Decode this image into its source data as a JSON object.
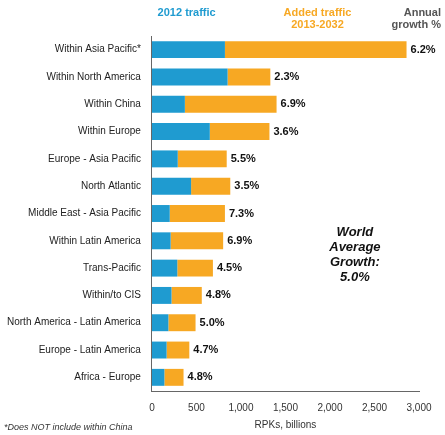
{
  "chart_data": {
    "type": "bar",
    "orientation": "horizontal",
    "stacked": true,
    "categories": [
      "Within Asia Pacific*",
      "Within North America",
      "Within China",
      "Within Europe",
      "Europe - Asia Pacific",
      "North Atlantic",
      "Middle East - Asia Pacific",
      "Within Latin America",
      "Trans-Pacific",
      "Within/to CIS",
      "North America - Latin America",
      "Europe - Latin America",
      "Africa - Europe"
    ],
    "series": [
      {
        "name": "2012 traffic",
        "color": "#1f9bd0",
        "values": [
          820,
          850,
          370,
          650,
          290,
          440,
          200,
          210,
          285,
          220,
          185,
          165,
          140
        ]
      },
      {
        "name": "Added traffic 2013-2032",
        "color": "#f7a823",
        "values": [
          2040,
          480,
          1030,
          670,
          550,
          440,
          620,
          590,
          400,
          340,
          305,
          255,
          215
        ]
      }
    ],
    "growth_title": "Annual growth %",
    "growth_labels": [
      "6.2%",
      "2.3%",
      "6.9%",
      "3.6%",
      "5.5%",
      "3.5%",
      "7.3%",
      "6.9%",
      "4.5%",
      "4.8%",
      "5.0%",
      "4.7%",
      "4.8%"
    ],
    "annotation": [
      "World",
      "Average",
      "Growth:",
      "5.0%"
    ],
    "x_label": "RPKs, billions",
    "footnote": "*Does NOT include within China",
    "xlim": [
      0,
      3000
    ],
    "xticks": [
      0,
      500,
      {
        "value": 1000,
        "label": "1,000"
      },
      {
        "value": 1500,
        "label": "1,500"
      },
      {
        "value": 2000,
        "label": "2,000"
      },
      {
        "value": 2500,
        "label": "2,500"
      },
      {
        "value": 3000,
        "label": "3,000"
      }
    ],
    "grid": false,
    "legend": "top"
  }
}
